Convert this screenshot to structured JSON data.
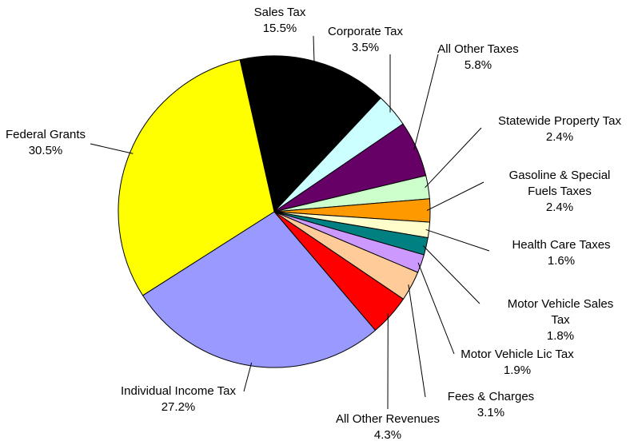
{
  "chart_data": {
    "type": "pie",
    "categories": [
      "Sales Tax",
      "Corporate Tax",
      "All Other Taxes",
      "Statewide Property Tax",
      "Gasoline & Special Fuels Taxes",
      "Health Care Taxes",
      "Motor Vehicle Sales Tax",
      "Motor Vehicle Lic Tax",
      "Fees & Charges",
      "All Other Revenues",
      "Individual Income Tax",
      "Federal Grants"
    ],
    "values": [
      15.5,
      3.5,
      5.8,
      2.4,
      2.4,
      1.6,
      1.8,
      1.9,
      3.1,
      4.3,
      27.2,
      30.5
    ],
    "value_labels": [
      "15.5%",
      "3.5%",
      "5.8%",
      "2.4%",
      "2.4%",
      "1.6%",
      "1.8%",
      "1.9%",
      "3.1%",
      "4.3%",
      "27.2%",
      "30.5%"
    ],
    "colors": [
      "#000000",
      "#ccffff",
      "#660066",
      "#ccffcc",
      "#ff9900",
      "#ffffcc",
      "#008080",
      "#cc99ff",
      "#ffcc99",
      "#ff0000",
      "#9999ff",
      "#ffff00"
    ]
  }
}
